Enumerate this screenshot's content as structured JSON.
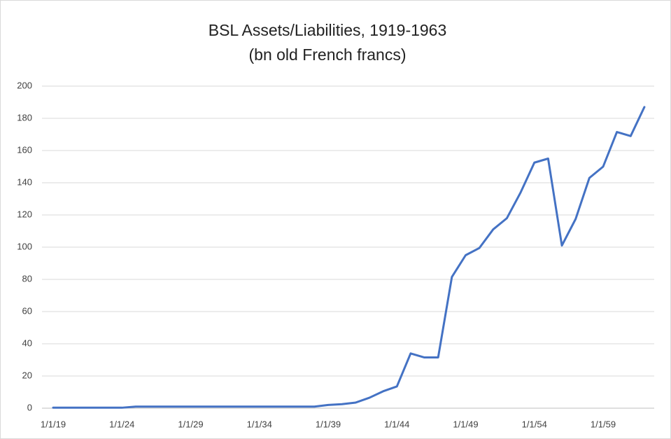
{
  "chart_data": {
    "type": "line",
    "title": "BSL Assets/Liabilities, 1919-1963",
    "subtitle": "(bn old French francs)",
    "categories": [
      "1/1/19",
      null,
      null,
      null,
      null,
      "1/1/24",
      null,
      null,
      null,
      null,
      "1/1/29",
      null,
      null,
      null,
      null,
      "1/1/34",
      null,
      null,
      null,
      null,
      "1/1/39",
      null,
      null,
      null,
      null,
      "1/1/44",
      null,
      null,
      null,
      null,
      "1/1/49",
      null,
      null,
      null,
      null,
      "1/1/54",
      null,
      null,
      null,
      null,
      "1/1/59",
      null,
      null,
      null
    ],
    "series": [
      {
        "name": "BSL Assets/Liabilities",
        "color": "#4472c4",
        "values": [
          0.3,
          0.3,
          0.3,
          0.3,
          0.3,
          0.3,
          1,
          1,
          1,
          1,
          1,
          1,
          1,
          1,
          1,
          1,
          1,
          1,
          1,
          1,
          2,
          2.5,
          3.5,
          6.5,
          10.5,
          13.5,
          34,
          31.5,
          31.5,
          81.5,
          95,
          99.5,
          111,
          118,
          134,
          152.5,
          155,
          101,
          117.5,
          143,
          150,
          171.5,
          169,
          187
        ]
      }
    ],
    "ylim": [
      0,
      200
    ],
    "yticks": [
      0,
      20,
      40,
      60,
      80,
      100,
      120,
      140,
      160,
      180,
      200
    ],
    "grid": true
  }
}
